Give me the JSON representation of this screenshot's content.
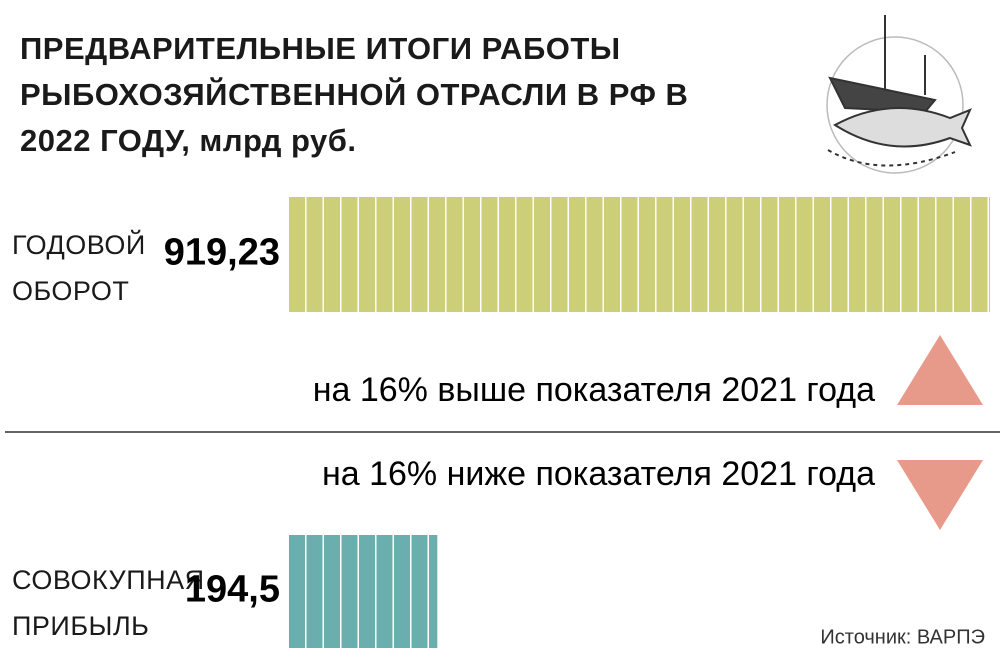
{
  "chart_data": {
    "type": "bar",
    "orientation": "horizontal",
    "title": "ПРЕДВАРИТЕЛЬНЫЕ ИТОГИ РАБОТЫ РЫБОХОЗЯЙСТВЕННОЙ ОТРАСЛИ В РФ В 2022 ГОДУ, млрд руб.",
    "categories": [
      "ГОДОВОЙ ОБОРОТ",
      "СОВОКУПНАЯ ПРИБЫЛЬ"
    ],
    "values": [
      919.23,
      194.5
    ],
    "value_labels": [
      "919,23",
      "194,5"
    ],
    "colors": [
      "#cccf78",
      "#6aafad"
    ],
    "annotations": [
      "на 16% выше показателя 2021 года",
      "на 16% ниже показателя 2021 года"
    ],
    "source": "Источник: ВАРПЭ"
  }
}
